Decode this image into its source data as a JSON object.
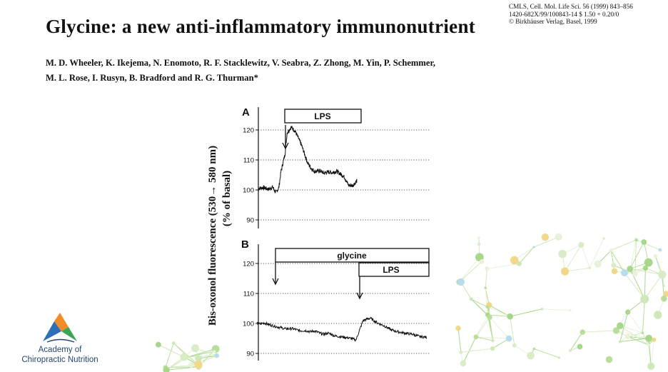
{
  "paper": {
    "title": "Glycine: a new anti-inflammatory immunonutrient",
    "citation": [
      "CMLS, Cell. Mol. Life Sci. 56 (1999) 843–856",
      "1420-682X/99/100843-14 $ 1.50 + 0.20/0",
      "© Birkhäuser Verlag, Basel, 1999"
    ],
    "authors": [
      "M. D. Wheeler, K. Ikejema, N. Enomoto, R. F. Stacklewitz, V. Seabra, Z. Zhong, M. Yin, P. Schemmer,",
      "M. L. Rose, I. Rusyn, B. Bradford and R. G. Thurman*"
    ]
  },
  "figure": {
    "ylabel_line1": "Bis-oxonol fluorescence (530→ 580 nm)",
    "ylabel_line2": "(% of basal)",
    "panel_a_label": "A",
    "panel_b_label": "B",
    "lps_bar_label": "LPS",
    "glycine_bar_label": "glycine"
  },
  "logo": {
    "line1": "Academy of",
    "line2": "Chiropractic Nutrition",
    "colors": [
      "#2e6fb7",
      "#f28c28",
      "#3aa655",
      "#24466f"
    ]
  },
  "chart_data": [
    {
      "type": "line",
      "panel": "A",
      "ylim": [
        86,
        124
      ],
      "yticks": [
        "120",
        "110",
        "100",
        "90"
      ],
      "grid": "dotted horizontal",
      "trace": {
        "x": [
          0,
          5,
          10,
          14,
          15,
          17,
          20,
          22,
          24,
          26,
          28,
          30,
          32,
          36,
          42,
          48,
          52,
          55,
          60,
          64,
          68,
          72,
          76,
          80,
          84,
          88,
          92,
          96
        ],
        "y": [
          100.5,
          100.8,
          100.2,
          101,
          100.4,
          99,
          100.8,
          106,
          109,
          112,
          119,
          120,
          121,
          119.5,
          115,
          109,
          107,
          106.2,
          106.4,
          105.6,
          106,
          105.8,
          106.2,
          105.4,
          104.2,
          101.5,
          101.5,
          103
        ]
      },
      "annotations": [
        "LPS",
        "arrow at LPS addition"
      ]
    },
    {
      "type": "line",
      "panel": "B",
      "ylim": [
        88,
        124
      ],
      "yticks": [
        "120",
        "110",
        "100",
        "90"
      ],
      "grid": "dotted horizontal",
      "trace": {
        "x": [
          0,
          5,
          10,
          20,
          30,
          40,
          50,
          60,
          70,
          75,
          80,
          85,
          90,
          95,
          100,
          105,
          110,
          115,
          120,
          130,
          140,
          150,
          160,
          170,
          180,
          190,
          200,
          210,
          220,
          230,
          240
        ],
        "y": [
          100,
          99.8,
          100.2,
          99.4,
          98.8,
          98.2,
          98.3,
          97.6,
          97.6,
          97.2,
          97.5,
          97.2,
          96.6,
          96.4,
          96.8,
          96.4,
          95.8,
          95.7,
          95.5,
          95.2,
          94.5,
          101,
          101.8,
          100.2,
          99.2,
          97.8,
          97.2,
          96.7,
          96.4,
          95.6,
          95.4
        ]
      },
      "annotations": [
        "glycine",
        "LPS",
        "arrow at glycine addition",
        "arrow at LPS addition"
      ]
    }
  ]
}
